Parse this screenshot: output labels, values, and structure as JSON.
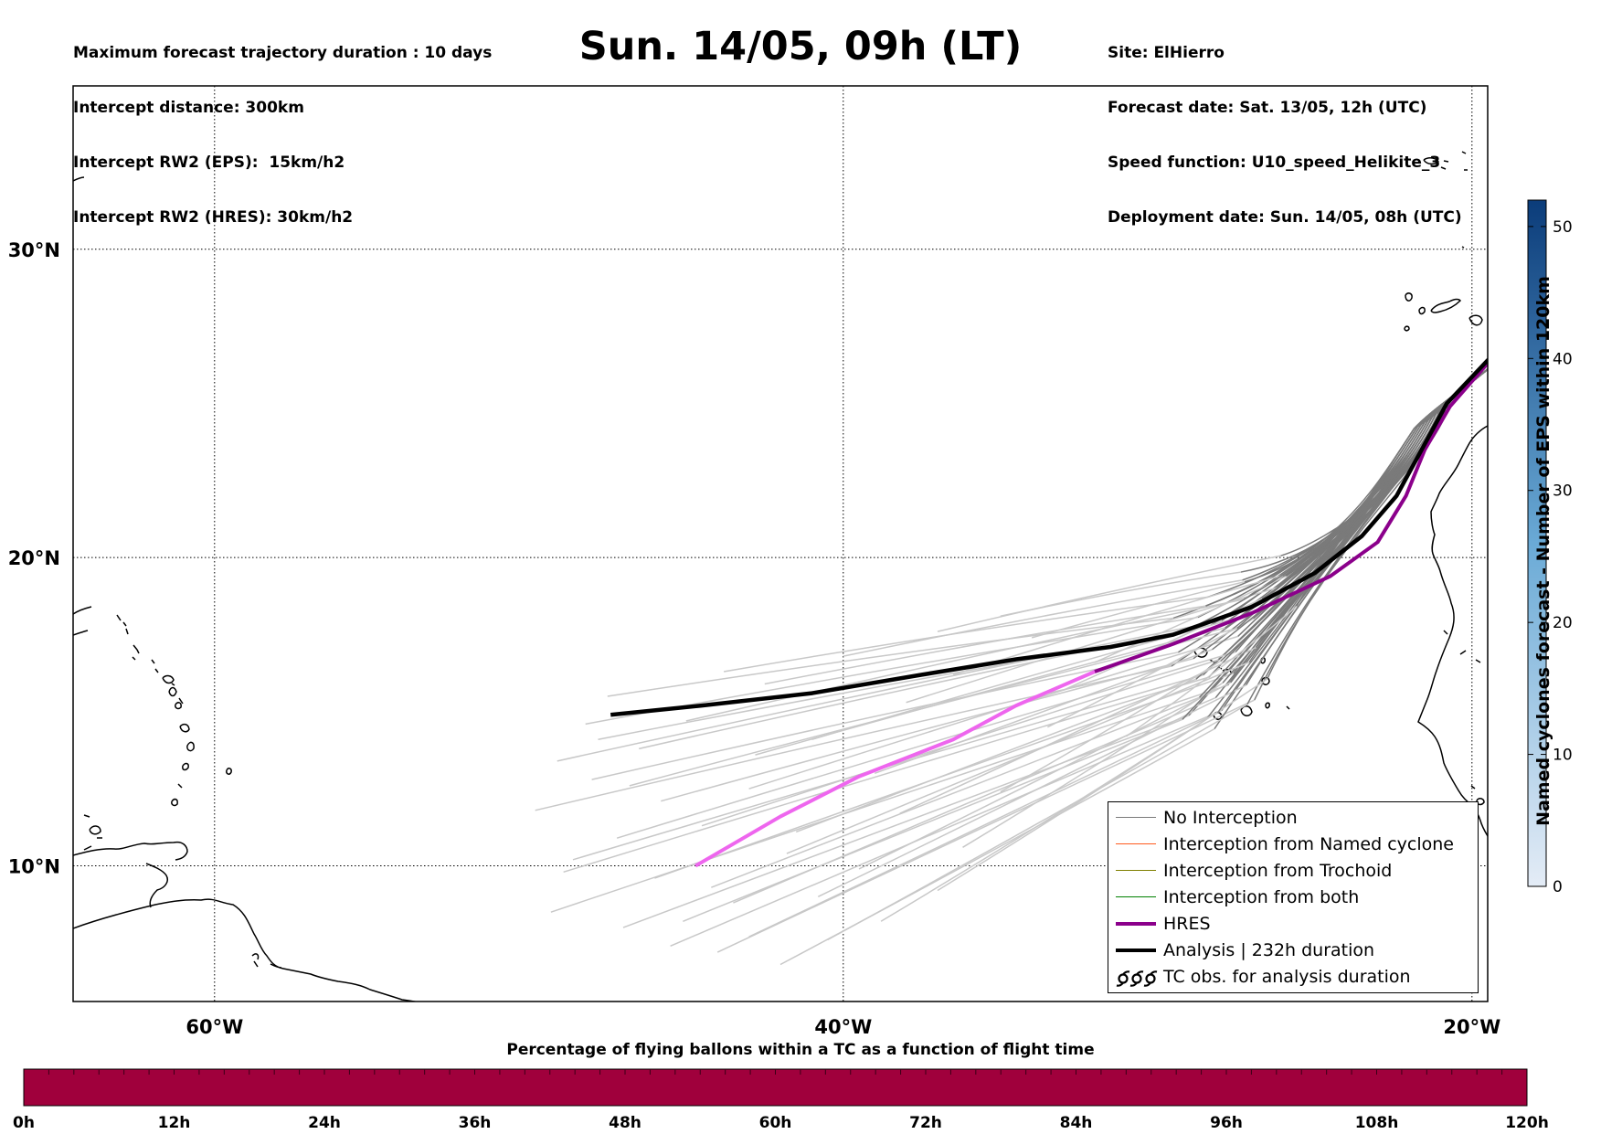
{
  "header": {
    "left_lines": [
      "Maximum forecast trajectory duration : 10 days",
      "Intercept distance: 300km",
      "Intercept RW2 (EPS):  15km/h2",
      "Intercept RW2 (HRES): 30km/h2"
    ],
    "title": "Sun. 14/05, 09h (LT)",
    "right_lines": [
      "Site: ElHierro",
      "Forecast date: Sat. 13/05, 12h (UTC)",
      "Speed function: U10_speed_Helikite_3",
      "Deployment date: Sun. 14/05, 08h (UTC)"
    ]
  },
  "map": {
    "lon_range": [
      -64.5,
      -19.5
    ],
    "lat_range": [
      5.6,
      35.3
    ],
    "lon_ticks": [
      {
        "lon": -60,
        "label": "60°W"
      },
      {
        "lon": -40,
        "label": "40°W"
      },
      {
        "lon": -20,
        "label": "20°W"
      }
    ],
    "lat_ticks": [
      {
        "lat": 30,
        "label": "30°N"
      },
      {
        "lat": 20,
        "label": "20°N"
      },
      {
        "lat": 10,
        "label": "10°N"
      }
    ],
    "colors": {
      "no_interception": "#7a7a7a",
      "no_interception_late": "#c8c8c8",
      "named_cyclone": "#ff5a1e",
      "trochoid": "#808000",
      "both": "#008000",
      "hres": "#8b008b",
      "hres_late": "#ee66ee",
      "analysis": "#000000",
      "coast": "#000000"
    },
    "site": {
      "lon": -17.9,
      "lat": 27.6
    },
    "analysis_track": [
      {
        "lon": -17.9,
        "lat": 27.6
      },
      {
        "lon": -19.5,
        "lat": 26.4
      },
      {
        "lon": -20.8,
        "lat": 25.0
      },
      {
        "lon": -21.6,
        "lat": 23.5
      },
      {
        "lon": -22.4,
        "lat": 22.0
      },
      {
        "lon": -23.5,
        "lat": 20.7
      },
      {
        "lon": -25.0,
        "lat": 19.5
      },
      {
        "lon": -27.0,
        "lat": 18.4
      },
      {
        "lon": -29.5,
        "lat": 17.5
      },
      {
        "lon": -31.5,
        "lat": 17.1
      },
      {
        "lon": -34.5,
        "lat": 16.7
      },
      {
        "lon": -37.5,
        "lat": 16.2
      },
      {
        "lon": -41.0,
        "lat": 15.6
      },
      {
        "lon": -44.5,
        "lat": 15.2
      },
      {
        "lon": -47.4,
        "lat": 14.9
      }
    ],
    "hres_track": [
      {
        "lon": -17.9,
        "lat": 27.6
      },
      {
        "lon": -19.5,
        "lat": 26.3
      },
      {
        "lon": -20.7,
        "lat": 24.9
      },
      {
        "lon": -21.5,
        "lat": 23.5
      },
      {
        "lon": -22.1,
        "lat": 22.0
      },
      {
        "lon": -23.0,
        "lat": 20.5
      },
      {
        "lon": -24.5,
        "lat": 19.4
      },
      {
        "lon": -27.0,
        "lat": 18.2
      },
      {
        "lon": -29.5,
        "lat": 17.2
      },
      {
        "lon": -32.0,
        "lat": 16.3
      },
      {
        "lon": -34.5,
        "lat": 15.2
      },
      {
        "lon": -36.5,
        "lat": 14.1
      },
      {
        "lon": -39.5,
        "lat": 12.9
      },
      {
        "lon": -42.0,
        "lat": 11.6
      },
      {
        "lon": -44.7,
        "lat": 10.0
      }
    ],
    "ensemble_endpoints": [
      {
        "lon": -47.5,
        "lat": 15.5
      },
      {
        "lon": -48.2,
        "lat": 14.6
      },
      {
        "lon": -49.1,
        "lat": 13.4
      },
      {
        "lon": -49.8,
        "lat": 11.8
      },
      {
        "lon": -48.6,
        "lat": 10.2
      },
      {
        "lon": -49.3,
        "lat": 8.5
      },
      {
        "lon": -47.0,
        "lat": 8.0
      },
      {
        "lon": -45.5,
        "lat": 7.4
      },
      {
        "lon": -44.0,
        "lat": 7.2
      },
      {
        "lon": -42.0,
        "lat": 6.8
      },
      {
        "lon": -40.5,
        "lat": 7.6
      },
      {
        "lon": -38.8,
        "lat": 8.2
      },
      {
        "lon": -43.5,
        "lat": 8.8
      },
      {
        "lon": -46.0,
        "lat": 9.6
      },
      {
        "lon": -48.0,
        "lat": 12.8
      },
      {
        "lon": -46.5,
        "lat": 13.8
      },
      {
        "lon": -45.0,
        "lat": 14.7
      },
      {
        "lon": -42.5,
        "lat": 15.9
      },
      {
        "lon": -40.0,
        "lat": 16.8
      },
      {
        "lon": -37.0,
        "lat": 17.6
      },
      {
        "lon": -35.0,
        "lat": 18.1
      },
      {
        "lon": -43.0,
        "lat": 12.5
      },
      {
        "lon": -41.5,
        "lat": 11.1
      },
      {
        "lon": -39.5,
        "lat": 9.9
      },
      {
        "lon": -37.0,
        "lat": 9.2
      },
      {
        "lon": -36.2,
        "lat": 10.6
      },
      {
        "lon": -44.5,
        "lat": 11.3
      },
      {
        "lon": -47.2,
        "lat": 10.9
      },
      {
        "lon": -45.8,
        "lat": 12.1
      },
      {
        "lon": -41.0,
        "lat": 14.1
      },
      {
        "lon": -38.0,
        "lat": 15.3
      },
      {
        "lon": -43.8,
        "lat": 16.3
      },
      {
        "lon": -40.8,
        "lat": 9.0
      },
      {
        "lon": -35.0,
        "lat": 12.4
      },
      {
        "lon": -33.5,
        "lat": 14.5
      },
      {
        "lon": -32.0,
        "lat": 16.6
      },
      {
        "lon": -39.0,
        "lat": 13.0
      },
      {
        "lon": -42.8,
        "lat": 13.6
      },
      {
        "lon": -46.8,
        "lat": 12.6
      },
      {
        "lon": -44.2,
        "lat": 9.3
      },
      {
        "lon": -48.9,
        "lat": 9.8
      },
      {
        "lon": -36.5,
        "lat": 16.2
      },
      {
        "lon": -34.0,
        "lat": 17.4
      },
      {
        "lon": -38.2,
        "lat": 11.7
      },
      {
        "lon": -45.1,
        "lat": 8.2
      },
      {
        "lon": -43.0,
        "lat": 7.7
      },
      {
        "lon": -41.8,
        "lat": 10.4
      },
      {
        "lon": -47.8,
        "lat": 14.1
      },
      {
        "lon": -33.0,
        "lat": 15.7
      },
      {
        "lon": -31.0,
        "lat": 14.2
      }
    ]
  },
  "legend": {
    "items": [
      {
        "label": "No Interception",
        "style": "thin",
        "color": "#7a7a7a"
      },
      {
        "label": "Interception from Named cyclone",
        "style": "thin",
        "color": "#ff5a1e"
      },
      {
        "label": "Interception from Trochoid",
        "style": "thin",
        "color": "#808000"
      },
      {
        "label": "Interception from both",
        "style": "thin",
        "color": "#008000"
      },
      {
        "label": "HRES",
        "style": "thick",
        "color": "#8b008b"
      },
      {
        "label": "Analysis | 232h duration",
        "style": "thick",
        "color": "#000000"
      },
      {
        "label": "TC obs. for analysis duration",
        "style": "symbol",
        "color": "#000000"
      }
    ]
  },
  "colorbar_right": {
    "title": "Named cyclones forecast - Number of EPS within 120km",
    "min": 0,
    "max": 52,
    "ticks": [
      0,
      10,
      20,
      30,
      40,
      50
    ],
    "color_low": "#e4ecf6",
    "color_high": "#0b3c7a"
  },
  "colorbar_bottom": {
    "title": "Percentage of flying ballons within a TC as a function of flight time",
    "fill_color": "#a0003c",
    "segments": 60,
    "tick_labels": [
      "0h",
      "12h",
      "24h",
      "36h",
      "48h",
      "60h",
      "72h",
      "84h",
      "96h",
      "108h",
      "120h"
    ]
  }
}
